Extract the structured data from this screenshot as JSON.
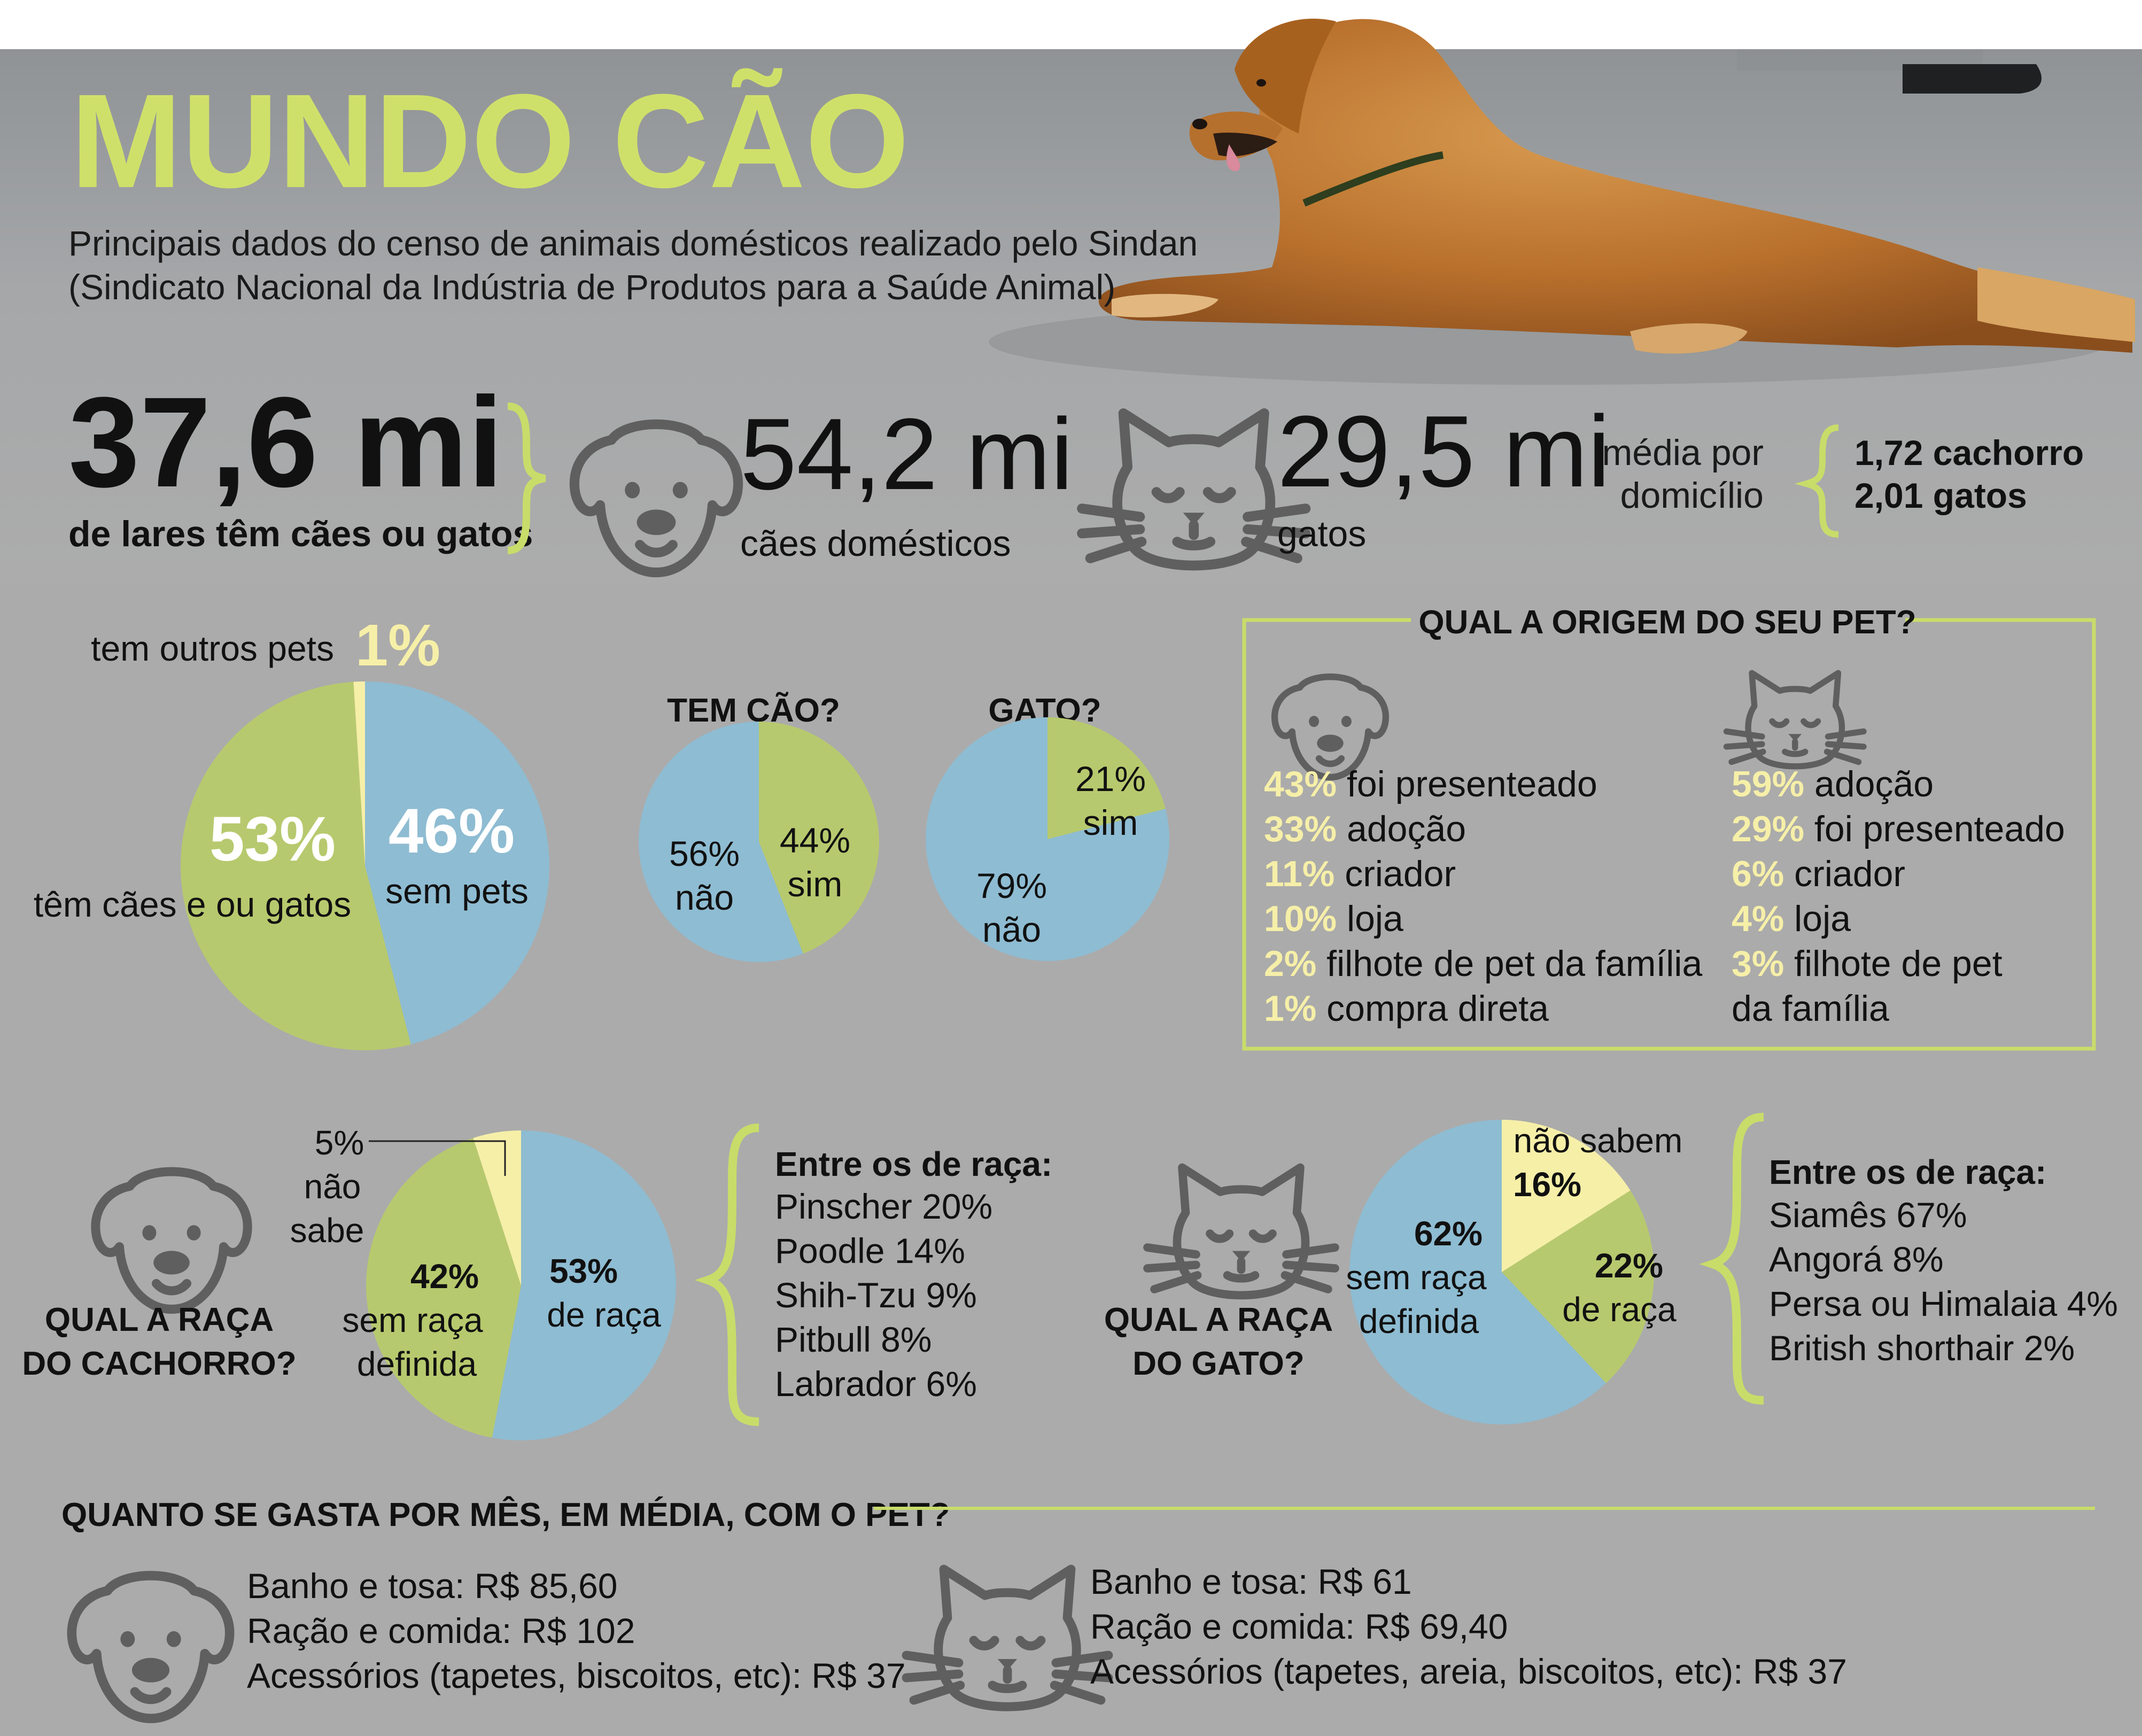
{
  "header": {
    "title": "MUNDO CÃO",
    "subtitle_line1": "Principais dados do censo de animais domésticos realizado pelo Sindan",
    "subtitle_line2": "(Sindicato Nacional da Indústria de Produtos para a Saúde Animal)"
  },
  "stats": {
    "homes_value": "37,6 mi",
    "homes_label": "de lares têm cães ou gatos",
    "dogs_value": "54,2 mi",
    "dogs_label": "cães domésticos",
    "cats_value": "29,5 mi",
    "cats_label": "gatos",
    "avg_label_1": "média por",
    "avg_label_2": "domicílio",
    "avg_dog": "1,72 cachorro",
    "avg_cat": "2,01 gatos"
  },
  "origin": {
    "title": "QUAL A ORIGEM DO SEU PET?",
    "dog": [
      {
        "pct": "43%",
        "label": " foi presenteado"
      },
      {
        "pct": "33%",
        "label": " adoção"
      },
      {
        "pct": "11%",
        "label": " criador"
      },
      {
        "pct": "10%",
        "label": " loja"
      },
      {
        "pct": "2%",
        "label": " filhote de pet da família"
      },
      {
        "pct": "1%",
        "label": " compra direta"
      }
    ],
    "cat": [
      {
        "pct": "59%",
        "label": " adoção"
      },
      {
        "pct": "29%",
        "label": " foi presenteado"
      },
      {
        "pct": "6%",
        "label": " criador"
      },
      {
        "pct": "4%",
        "label": " loja"
      },
      {
        "pct": "3%",
        "label": " filhote de pet"
      },
      {
        "pct": "",
        "label": "da família"
      }
    ]
  },
  "pies": {
    "main": {
      "others_label": "tem outros pets",
      "others_pct": "1%",
      "pets_pct": "53%",
      "pets_label": "têm cães e ou gatos",
      "nopets_pct": "46%",
      "nopets_label": "sem pets"
    },
    "dog_q": {
      "title": "TEM CÃO?",
      "no_pct": "56%",
      "no_label": "não",
      "yes_pct": "44%",
      "yes_label": "sim"
    },
    "cat_q": {
      "title": "GATO?",
      "yes_pct": "21%",
      "yes_label": "sim",
      "no_pct": "79%",
      "no_label": "não"
    },
    "dog_breed": {
      "title_1": "QUAL A RAÇA",
      "title_2": "DO CACHORRO?",
      "unk_pct": "5%",
      "unk_1": "não",
      "unk_2": "sabe",
      "mixed_pct": "42%",
      "mixed_1": "sem raça",
      "mixed_2": "definida",
      "breed_pct": "53%",
      "breed_label": "de raça"
    },
    "cat_breed": {
      "title_1": "QUAL A RAÇA",
      "title_2": "DO GATO?",
      "unk_label": "não sabem",
      "unk_pct": "16%",
      "mixed_pct": "62%",
      "mixed_1": "sem raça",
      "mixed_2": "definida",
      "breed_pct": "22%",
      "breed_label": "de raça"
    }
  },
  "breeds": {
    "dog_title": "Entre os de raça:",
    "dog": [
      "Pinscher 20%",
      "Poodle 14%",
      "Shih-Tzu 9%",
      "Pitbull 8%",
      "Labrador 6%"
    ],
    "cat_title": "Entre os de raça:",
    "cat": [
      "Siamês 67%",
      "Angorá 8%",
      "Persa ou Himalaia 4%",
      "British shorthair 2%"
    ]
  },
  "spending": {
    "title": "QUANTO SE GASTA POR MÊS, EM MÉDIA, COM O PET?",
    "dog": [
      "Banho e tosa: R$ 85,60",
      "Ração e comida: R$ 102",
      "Acessórios (tapetes, biscoitos, etc): R$ 37"
    ],
    "cat": [
      "Banho e tosa: R$ 61",
      "Ração e comida: R$ 69,40",
      "Acessórios (tapetes, areia, biscoitos, etc): R$ 37"
    ]
  },
  "colors": {
    "background": "#ababab",
    "green": "#b7c96e",
    "blue": "#8ebcd2",
    "yellow": "#f6efa8",
    "title_green": "#cfe06a",
    "accent_line": "#c8dc6a",
    "icon": "#5f5f5f",
    "dog_fur": "#c07a35"
  },
  "chart_data": [
    {
      "type": "pie",
      "title": "",
      "categories": [
        "têm cães e ou gatos",
        "sem pets",
        "tem outros pets"
      ],
      "values": [
        53,
        46,
        1
      ]
    },
    {
      "type": "pie",
      "title": "TEM CÃO?",
      "categories": [
        "sim",
        "não"
      ],
      "values": [
        44,
        56
      ]
    },
    {
      "type": "pie",
      "title": "GATO?",
      "categories": [
        "sim",
        "não"
      ],
      "values": [
        21,
        79
      ]
    },
    {
      "type": "pie",
      "title": "QUAL A RAÇA DO CACHORRO?",
      "categories": [
        "de raça",
        "sem raça definida",
        "não sabe"
      ],
      "values": [
        53,
        42,
        5
      ]
    },
    {
      "type": "pie",
      "title": "QUAL A RAÇA DO GATO?",
      "categories": [
        "não sabem",
        "de raça",
        "sem raça definida"
      ],
      "values": [
        16,
        22,
        62
      ]
    }
  ]
}
